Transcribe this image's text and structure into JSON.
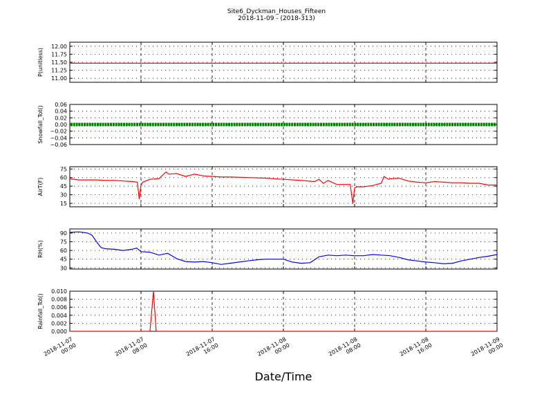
{
  "title": "Site6_Dyckman_Houses_Fifteen",
  "subtitle": "2018-11-09 - (2018-313)",
  "xlabel": "Date/Time",
  "x_ticks": [
    {
      "line1": "2018-11-07",
      "line2": "00:00"
    },
    {
      "line1": "2018-11-07",
      "line2": "08:00"
    },
    {
      "line1": "2018-11-07",
      "line2": "16:00"
    },
    {
      "line1": "2018-11-08",
      "line2": "00:00"
    },
    {
      "line1": "2018-11-08",
      "line2": "08:00"
    },
    {
      "line1": "2018-11-08",
      "line2": "16:00"
    },
    {
      "line1": "2018-11-09",
      "line2": "00:00"
    }
  ],
  "chart_data": [
    {
      "type": "line",
      "ylabel": "P(unitless)",
      "color": "#ff0000",
      "marker": "none",
      "ylim": [
        10.875,
        12.125
      ],
      "yticks": [
        "12.00",
        "11.75",
        "11.50",
        "11.25",
        "11.00"
      ],
      "ytick_values": [
        12.0,
        11.75,
        11.5,
        11.25,
        11.0
      ],
      "xrange_hours": [
        0,
        48
      ],
      "x": [
        0,
        48
      ],
      "y": [
        11.47,
        11.47
      ]
    },
    {
      "type": "line",
      "ylabel": "Snowfall_Tot()",
      "color": "#008000",
      "marker": "dot",
      "ylim": [
        -0.06,
        0.06
      ],
      "yticks": [
        "0.06",
        "0.04",
        "0.02",
        "0.00",
        "−0.02",
        "−0.04",
        "−0.06"
      ],
      "ytick_values": [
        0.06,
        0.04,
        0.02,
        0.0,
        -0.02,
        -0.04,
        -0.06
      ],
      "xrange_hours": [
        0,
        48
      ],
      "x": [
        0,
        48
      ],
      "y": [
        0,
        0
      ]
    },
    {
      "type": "line",
      "ylabel": "AirT(F)",
      "color": "#ff0000",
      "marker": "none",
      "ylim": [
        9,
        79
      ],
      "yticks": [
        "75",
        "60",
        "45",
        "30",
        "15"
      ],
      "ytick_values": [
        75,
        60,
        45,
        30,
        15
      ],
      "xrange_hours": [
        0,
        48
      ],
      "x": [
        0,
        1,
        2,
        3,
        4,
        5,
        6,
        7,
        7.6,
        7.8,
        8.0,
        8.2,
        9,
        10,
        10.8,
        11.1,
        12,
        13,
        14,
        15,
        16,
        17,
        18,
        20,
        22,
        24,
        26,
        27.5,
        28,
        28.5,
        29,
        30,
        31.5,
        31.8,
        32,
        32.3,
        33,
        34,
        35,
        35.3,
        35.8,
        36,
        37,
        38,
        39,
        40,
        41,
        42,
        43,
        44,
        45,
        46,
        47,
        48
      ],
      "y": [
        58,
        56,
        56,
        56,
        55,
        55,
        54,
        53,
        52,
        22,
        47,
        52,
        57,
        58,
        70,
        66,
        67,
        62,
        66,
        63,
        62,
        61,
        61,
        60,
        59,
        57,
        55,
        53,
        57,
        50,
        55,
        48,
        48,
        15,
        42,
        44,
        44,
        46,
        50,
        62,
        57,
        58,
        59,
        54,
        52,
        51,
        53,
        52,
        51,
        51,
        50,
        50,
        47,
        47
      ]
    },
    {
      "type": "line",
      "ylabel": "RH(%)",
      "color": "#0000ff",
      "marker": "none",
      "ylim": [
        28,
        97
      ],
      "yticks": [
        "90",
        "75",
        "60",
        "45",
        "30"
      ],
      "ytick_values": [
        90,
        75,
        60,
        45,
        30
      ],
      "xrange_hours": [
        0,
        48
      ],
      "x": [
        0,
        1,
        2,
        2.5,
        3,
        3.5,
        4,
        5,
        6,
        7,
        7.5,
        8,
        9,
        10,
        11,
        12,
        13,
        14,
        15,
        16,
        17,
        18,
        19,
        20,
        21,
        22,
        23,
        24,
        25,
        26,
        27,
        28,
        29,
        30,
        31,
        32,
        33,
        34,
        35,
        36,
        37,
        38,
        39,
        40,
        41,
        42,
        43,
        44,
        45,
        46,
        47,
        48
      ],
      "y": [
        91,
        92,
        90,
        86,
        75,
        65,
        63,
        62,
        60,
        62,
        64,
        58,
        57,
        52,
        55,
        46,
        41,
        40,
        41,
        39,
        36,
        38,
        40,
        42,
        44,
        45,
        45,
        45,
        40,
        38,
        39,
        49,
        52,
        51,
        52,
        51,
        51,
        53,
        52,
        51,
        48,
        44,
        42,
        40,
        39,
        37,
        38,
        42,
        45,
        48,
        50,
        53
      ]
    },
    {
      "type": "line",
      "ylabel": "Rainfall_Tot()",
      "color": "#ff0000",
      "marker": "none",
      "ylim": [
        0,
        0.01
      ],
      "yticks": [
        "0.010",
        "0.008",
        "0.006",
        "0.004",
        "0.002",
        "0.000"
      ],
      "ytick_values": [
        0.01,
        0.008,
        0.006,
        0.004,
        0.002,
        0.0
      ],
      "xrange_hours": [
        0,
        48
      ],
      "x": [
        0,
        9.0,
        9.4,
        9.7,
        48
      ],
      "y": [
        0,
        0,
        0.01,
        0,
        0
      ]
    }
  ]
}
